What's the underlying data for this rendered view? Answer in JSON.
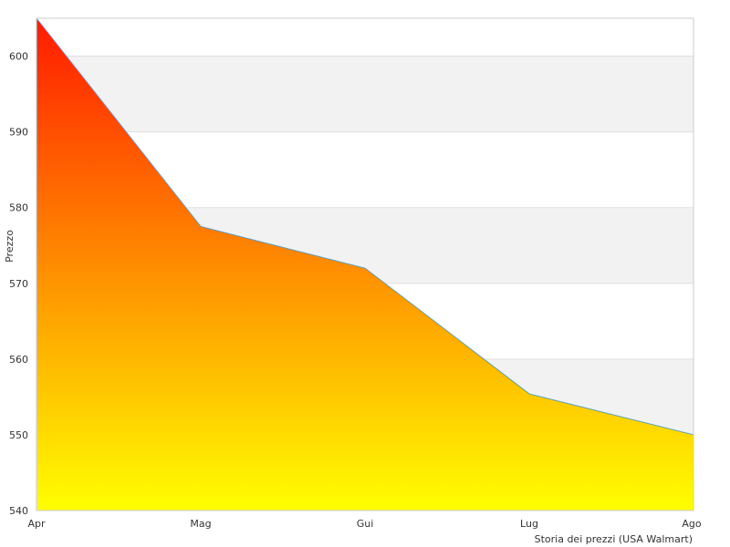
{
  "chart_data": {
    "type": "area",
    "title": "",
    "xlabel": "Storia dei prezzi (USA Walmart)",
    "ylabel": "Prezzo",
    "categories": [
      "Apr",
      "Mag",
      "Gui",
      "Lug",
      "Ago"
    ],
    "series": [
      {
        "values": [
          605,
          577.5,
          572,
          555.4,
          550
        ]
      }
    ],
    "ylim": [
      540,
      605
    ],
    "yticks": [
      540,
      550,
      560,
      570,
      580,
      590,
      600
    ],
    "grid": "alternating horizontal bands",
    "legend": "none",
    "colors": {
      "area_top": "#ff1a00",
      "area_mid": "#ff8c00",
      "area_bottom": "#ffff00",
      "line": "#4a9fd8",
      "band": "#f2f2f2",
      "plot_border": "#cccccc"
    }
  }
}
